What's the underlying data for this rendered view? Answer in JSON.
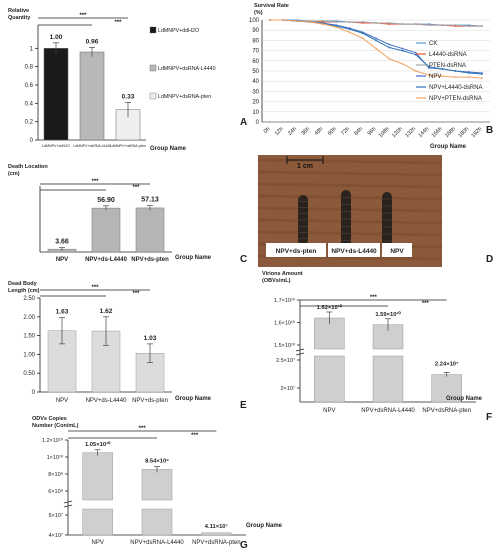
{
  "chart_data": [
    {
      "panel": "A",
      "type": "bar",
      "ylabel": "Relative Quantity",
      "categories": [
        "LdMNPV+ddH2O",
        "LdMNPV+dsRNA-l4440",
        "LdMNPV+dsRNA-pten"
      ],
      "values": [
        1.0,
        0.96,
        0.33
      ],
      "value_labels": [
        "1.00",
        "0.96",
        "0.33"
      ],
      "errors": [
        0.06,
        0.05,
        0.08
      ],
      "yticks": [
        "0",
        "0.2",
        "0.4",
        "0.6",
        "0.8",
        "1"
      ],
      "ylim": [
        0,
        1.2
      ],
      "significance": [
        "***",
        "***"
      ],
      "legend": [
        "LdMNPV+ddH2O",
        "LdMNPV+dsRNA-L4440",
        "LdMNPV+dsRNA-pten"
      ],
      "xlabel": "Group Name",
      "colors": [
        "#1a1a1a",
        "#b8b8b8",
        "#eeeeee"
      ]
    },
    {
      "panel": "B",
      "type": "line",
      "ylabel": "Survival Rate (%)",
      "xlabel": "Group Name",
      "x": [
        "0h",
        "12h",
        "24h",
        "36h",
        "48h",
        "60h",
        "72h",
        "84h",
        "96h",
        "108h",
        "120h",
        "132h",
        "144h",
        "156h",
        "168h",
        "180h",
        "192h"
      ],
      "yticks": [
        "0",
        "10",
        "20",
        "30",
        "40",
        "50",
        "60",
        "70",
        "80",
        "90",
        "100"
      ],
      "ylim": [
        0,
        100
      ],
      "series": [
        {
          "name": "CK",
          "color": "#5b9bd5",
          "values": [
            100,
            100,
            100,
            99,
            99,
            99,
            98,
            98,
            97,
            97,
            96,
            96,
            96,
            95,
            95,
            95,
            94
          ]
        },
        {
          "name": "L4440-dsRNA",
          "color": "#e8543a",
          "values": [
            100,
            100,
            99,
            99,
            98,
            98,
            98,
            97,
            97,
            96,
            96,
            96,
            95,
            95,
            94,
            94,
            94
          ]
        },
        {
          "name": "PTEN-dsRNA",
          "color": "#a5a5a5",
          "values": [
            100,
            100,
            99,
            99,
            99,
            98,
            98,
            98,
            97,
            97,
            96,
            96,
            95,
            95,
            95,
            94,
            94
          ]
        },
        {
          "name": "NPV",
          "color": "#4472c4",
          "values": [
            100,
            100,
            99,
            98,
            97,
            95,
            92,
            88,
            82,
            76,
            72,
            68,
            53,
            52,
            50,
            49,
            48
          ]
        },
        {
          "name": "NPV+L4440-dsRNA",
          "color": "#2e75b6",
          "values": [
            100,
            100,
            99,
            98,
            97,
            94,
            91,
            87,
            80,
            73,
            70,
            66,
            54,
            52,
            50,
            48,
            47
          ]
        },
        {
          "name": "NPV+PTEN-dsRNA",
          "color": "#f4a460",
          "values": [
            100,
            100,
            99,
            98,
            96,
            93,
            88,
            82,
            72,
            62,
            57,
            50,
            46,
            45,
            44,
            44,
            43
          ]
        }
      ]
    },
    {
      "panel": "C",
      "type": "bar",
      "ylabel": "Death Location (cm)",
      "xlabel": "Group Name",
      "categories": [
        "NPV",
        "NPV+ds-L4440",
        "NPV+ds-pten"
      ],
      "values": [
        3.66,
        56.9,
        57.13
      ],
      "value_labels": [
        "3.66",
        "56.90",
        "57.13"
      ],
      "errors": [
        2,
        3,
        3
      ],
      "ylim": [
        0,
        70
      ],
      "significance": [
        "***",
        "***"
      ]
    },
    {
      "panel": "E",
      "type": "bar",
      "ylabel": "Dead Body Length (cm)",
      "xlabel": "Group Name",
      "categories": [
        "NPV",
        "NPV+ds-L4440",
        "NPV+ds-pten"
      ],
      "values": [
        1.63,
        1.62,
        1.03
      ],
      "value_labels": [
        "1.63",
        "1.62",
        "1.03"
      ],
      "errors": [
        0.35,
        0.38,
        0.25
      ],
      "yticks": [
        "0",
        "0.50",
        "1.00",
        "1.50",
        "2.00",
        "2.50"
      ],
      "ylim": [
        0,
        2.5
      ],
      "significance": [
        "***",
        "***"
      ]
    },
    {
      "panel": "F",
      "type": "bar",
      "ylabel": "Virions Amount (OBVs/mL)",
      "xlabel": "Group Name",
      "categories": [
        "NPV",
        "NPV+dsRNA-L4440",
        "NPV+dsRNA-pten"
      ],
      "values": [
        16200000000.0,
        15900000000.0,
        22400000.0
      ],
      "value_labels": [
        "1.62×10¹⁰",
        "1.59×10¹⁰",
        "2.24×10⁷"
      ],
      "yticks": [
        "2×10⁷",
        "2.5×10⁷",
        "1.5×10¹⁰",
        "1.6×10¹⁰",
        "1.7×10¹⁰"
      ],
      "significance": [
        "***",
        "***"
      ]
    },
    {
      "panel": "G",
      "type": "bar",
      "ylabel": "ODVs Copies Number (Con/mL)",
      "xlabel": "Group Name",
      "categories": [
        "NPV",
        "NPV+dsRNA-L4440",
        "NPV+dsRNA-pten"
      ],
      "values": [
        10500000000.0,
        8540000000.0,
        41100000.0
      ],
      "value_labels": [
        "1.05×10¹⁰",
        "8.54×10⁹",
        "4.11×10⁷"
      ],
      "yticks": [
        "4×10⁷",
        "5×10⁷",
        "6×10⁹",
        "8×10⁹",
        "1×10¹⁰",
        "1.2×10¹⁰"
      ],
      "significance": [
        "***",
        "***"
      ]
    }
  ],
  "photo": {
    "panel": "D",
    "scale_label": "1 cm",
    "labels": [
      "NPV+ds-pten",
      "NPV+ds-L4440",
      "NPV"
    ]
  }
}
